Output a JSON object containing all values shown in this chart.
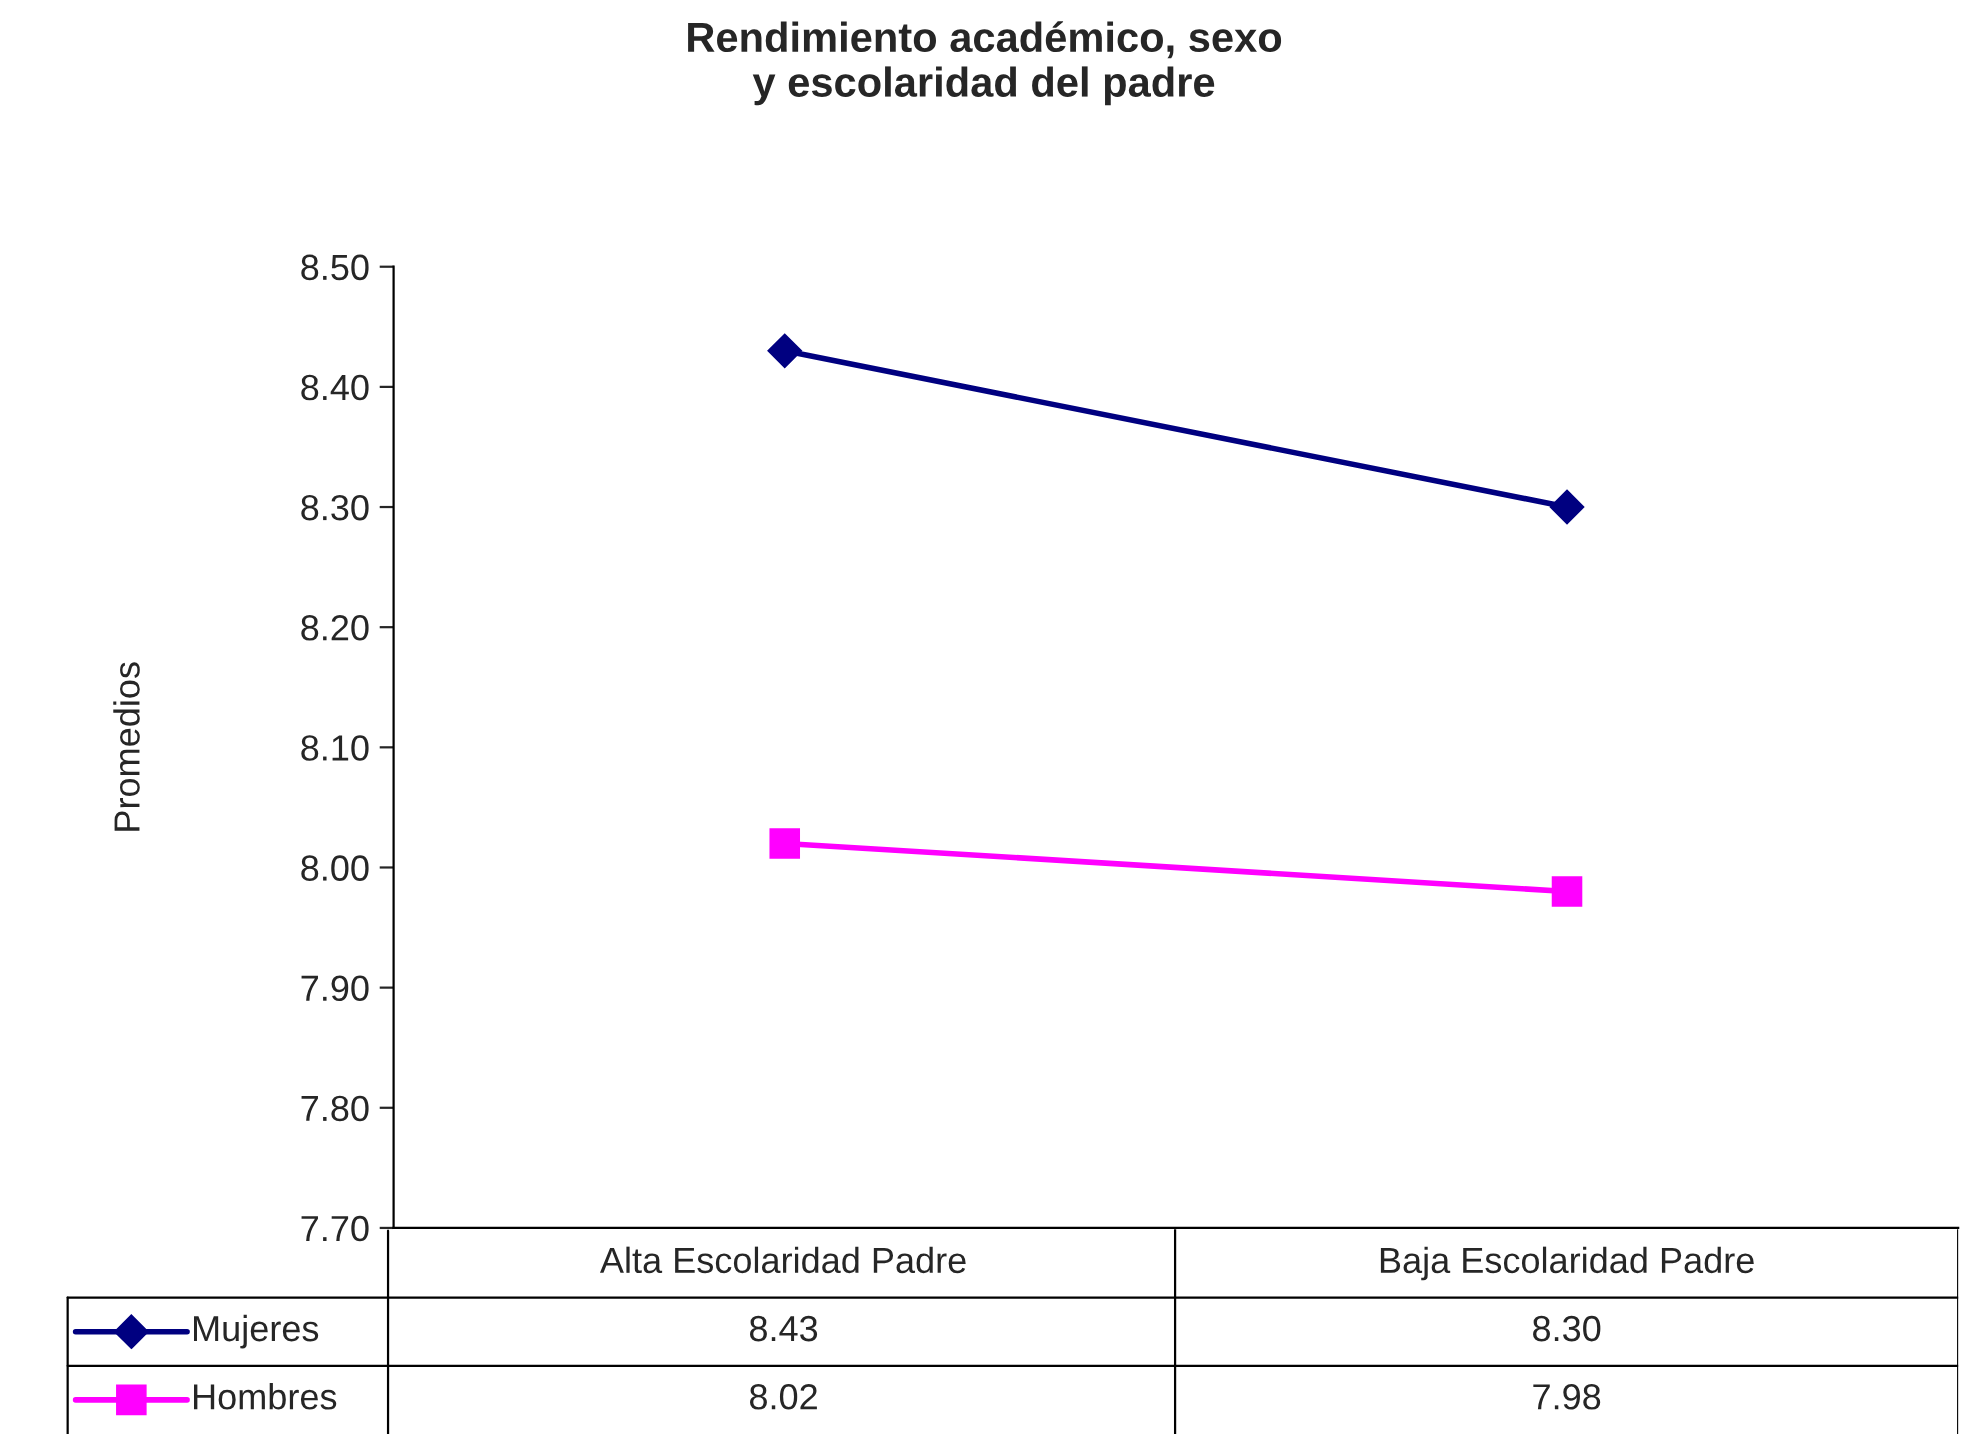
{
  "chart_data": {
    "type": "line",
    "title": "Rendimiento académico, sexo\ny escolaridad del padre",
    "ylabel": "Promedios",
    "categories": [
      "Alta Escolaridad Padre",
      "Baja Escolaridad Padre"
    ],
    "series": [
      {
        "name": "Mujeres",
        "color": "#000080",
        "values": [
          8.43,
          8.3
        ],
        "value_labels": [
          "8.43",
          "8.30"
        ],
        "marker": "diamond"
      },
      {
        "name": "Hombres",
        "color": "#ff00ff",
        "values": [
          8.02,
          7.98
        ],
        "value_labels": [
          "8.02",
          "7.98"
        ],
        "marker": "square"
      }
    ],
    "ylim": [
      7.7,
      8.5
    ],
    "yticks": [
      {
        "value": 7.7,
        "label": "7.70"
      },
      {
        "value": 7.8,
        "label": "7.80"
      },
      {
        "value": 7.9,
        "label": "7.90"
      },
      {
        "value": 8.0,
        "label": "8.00"
      },
      {
        "value": 8.1,
        "label": "8.10"
      },
      {
        "value": 8.2,
        "label": "8.20"
      },
      {
        "value": 8.3,
        "label": "8.30"
      },
      {
        "value": 8.4,
        "label": "8.40"
      },
      {
        "value": 8.5,
        "label": "8.50"
      }
    ],
    "grid": false,
    "legend": "bottom left",
    "line_style": "solid"
  }
}
